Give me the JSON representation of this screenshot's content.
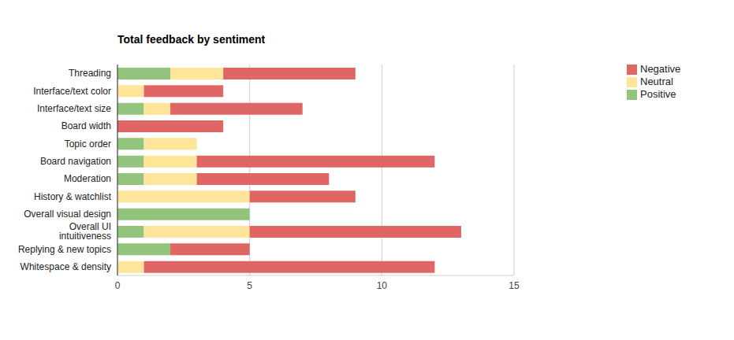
{
  "chart_data": {
    "type": "bar",
    "title": "Total feedback by sentiment",
    "orientation": "horizontal",
    "stacked": true,
    "grid": true,
    "legend": "right",
    "categories": [
      "Threading",
      "Interface/text color",
      "Interface/text size",
      "Board width",
      "Topic order",
      "Board navigation",
      "Moderation",
      "History & watchlist",
      "Overall visual design",
      "Overall UI intuitiveness",
      "Replying & new topics",
      "Whitespace & density"
    ],
    "series": [
      {
        "name": "Positive",
        "color": "#93c47d",
        "values": [
          2,
          0,
          1,
          0,
          1,
          1,
          1,
          0,
          5,
          1,
          2,
          0
        ]
      },
      {
        "name": "Neutral",
        "color": "#ffe599",
        "values": [
          2,
          1,
          1,
          0,
          2,
          2,
          2,
          5,
          0,
          4,
          0,
          1
        ]
      },
      {
        "name": "Negative",
        "color": "#e06666",
        "values": [
          5,
          3,
          5,
          4,
          0,
          9,
          5,
          4,
          0,
          8,
          3,
          11
        ]
      }
    ],
    "xlim": [
      0,
      15
    ],
    "xticks": [
      0,
      5,
      10,
      15
    ]
  }
}
